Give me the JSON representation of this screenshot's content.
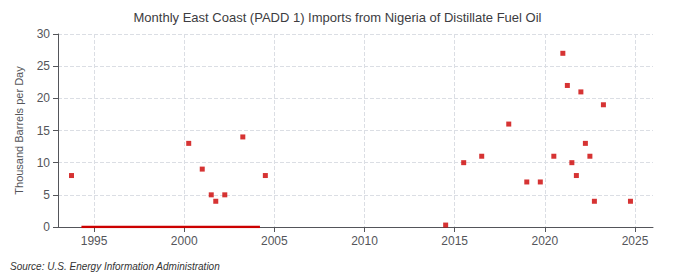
{
  "chart_data": {
    "type": "scatter",
    "title": "Monthly East Coast (PADD 1) Imports from Nigeria of Distillate Fuel Oil",
    "ylabel": "Thousand Barrels per Day",
    "source": "Source: U.S. Energy Information Administration",
    "xlim": [
      1993,
      2026
    ],
    "ylim": [
      0,
      30
    ],
    "xticks": [
      1995,
      2000,
      2005,
      2010,
      2015,
      2020,
      2025
    ],
    "yticks": [
      0,
      5,
      10,
      15,
      20,
      25,
      30
    ],
    "grid": true,
    "series": [
      {
        "type": "line",
        "color": "#cc0000",
        "x": [
          1994.3,
          2004.2
        ],
        "values": [
          0,
          0
        ]
      },
      {
        "type": "scatter",
        "marker": "square",
        "color": "#cc0000",
        "x": [
          1993.75,
          2000.25,
          2001.0,
          2001.5,
          2001.75,
          2002.25,
          2003.25,
          2004.5,
          2014.5,
          2015.5,
          2016.5,
          2018.0,
          2019.0,
          2019.75,
          2020.5,
          2021.0,
          2021.25,
          2021.5,
          2021.75,
          2022.0,
          2022.25,
          2022.5,
          2022.75,
          2023.25,
          2024.75
        ],
        "values": [
          8,
          13,
          9,
          5,
          4,
          5,
          14,
          8,
          0.3,
          10,
          11,
          16,
          7,
          7,
          11,
          27,
          22,
          10,
          8,
          21,
          13,
          11,
          4,
          19,
          4
        ]
      }
    ]
  }
}
